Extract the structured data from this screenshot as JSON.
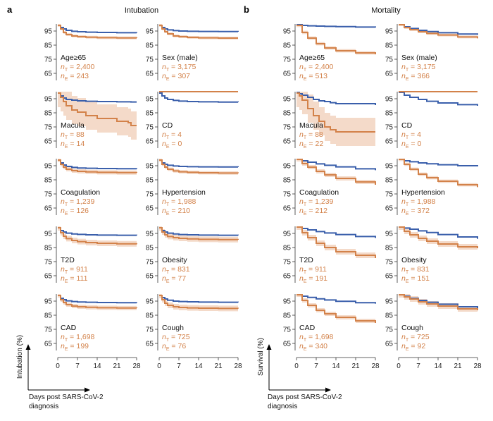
{
  "colors": {
    "treated": "#3a5fab",
    "event": "#d3824a",
    "band": "#f2d3bf",
    "axis": "#333333"
  },
  "figure": {
    "panel_a": {
      "letter": "a",
      "title": "Intubation",
      "ylabel": "Intubation (%)"
    },
    "panel_b": {
      "letter": "b",
      "title": "Mortality",
      "ylabel": "Survival (%)"
    },
    "xlabel_line1": "Days post SARS-CoV-2",
    "xlabel_line2": "diagnosis",
    "n_prefix_t": "n",
    "n_sub_t": "T",
    "n_prefix_e": "n",
    "n_sub_e": "E"
  },
  "chart_data": [
    {
      "panel": "a",
      "type": "line",
      "title": "Intubation",
      "ylabel": "Intubation (%)",
      "xlabel": "Days post SARS-CoV-2 diagnosis",
      "x_ticks": [
        0,
        7,
        14,
        21,
        28
      ],
      "y_ticks": [
        95,
        85,
        75,
        65
      ],
      "xlim": [
        0,
        28
      ],
      "ylim": [
        60,
        100
      ],
      "subplots": [
        {
          "condition": "Age≥65",
          "n_t": "2,400",
          "n_e": "243",
          "x": [
            0,
            1,
            2,
            3,
            5,
            7,
            10,
            14,
            21,
            28
          ],
          "series": [
            {
              "values": [
                99,
                97.5,
                96.5,
                95.5,
                94.8,
                94.5,
                94.2,
                94,
                93.8,
                93.7
              ]
            },
            {
              "values": [
                99,
                96.5,
                94,
                92.5,
                91.5,
                91,
                90.6,
                90.3,
                90.1,
                90
              ],
              "band": 1
            }
          ]
        },
        {
          "condition": "Sex (male)",
          "n_t": "3,175",
          "n_e": "307",
          "x": [
            0,
            1,
            2,
            3,
            5,
            7,
            10,
            14,
            21,
            28
          ],
          "series": [
            {
              "values": [
                99,
                97.5,
                96.5,
                95.8,
                95.3,
                95,
                94.8,
                94.7,
                94.6,
                94.5
              ]
            },
            {
              "values": [
                99,
                96.5,
                94.5,
                93,
                91.5,
                91,
                90.5,
                90.2,
                90,
                90
              ],
              "band": 1
            }
          ]
        },
        {
          "condition": "Macula",
          "n_t": "88",
          "n_e": "14",
          "x": [
            0,
            1,
            2,
            3,
            5,
            7,
            10,
            14,
            21,
            25,
            26,
            28
          ],
          "series": [
            {
              "values": [
                99,
                97,
                95.5,
                94.5,
                94,
                93.5,
                93.2,
                93,
                92.8,
                92.8,
                92.7,
                92.7
              ]
            },
            {
              "values": [
                99,
                96,
                93,
                90,
                87,
                85.5,
                83,
                81,
                79,
                78,
                76,
                76
              ],
              "band": 10
            }
          ]
        },
        {
          "condition": "CD",
          "n_t": "4",
          "n_e": "0",
          "x": [
            0,
            1,
            2,
            3,
            5,
            7,
            10,
            14,
            21,
            28
          ],
          "series": [
            {
              "values": [
                99,
                97,
                95.5,
                94.5,
                93.8,
                93.3,
                93,
                92.8,
                92.6,
                92.5
              ]
            },
            {
              "values": [
                100,
                100,
                100,
                100,
                100,
                100,
                100,
                100,
                100,
                100
              ]
            }
          ]
        },
        {
          "condition": "Coagulation",
          "n_t": "1,239",
          "n_e": "126",
          "x": [
            0,
            1,
            2,
            3,
            5,
            7,
            10,
            14,
            21,
            28
          ],
          "series": [
            {
              "values": [
                99,
                97,
                95.5,
                94.5,
                93.8,
                93.4,
                93.2,
                93,
                92.9,
                92.8
              ]
            },
            {
              "values": [
                99,
                96,
                94,
                92.5,
                91.5,
                91,
                90.6,
                90.3,
                90.1,
                90
              ],
              "band": 1.5
            }
          ]
        },
        {
          "condition": "Hypertension",
          "n_t": "1,988",
          "n_e": "210",
          "x": [
            0,
            1,
            2,
            3,
            5,
            7,
            10,
            14,
            21,
            28
          ],
          "series": [
            {
              "values": [
                99,
                97,
                96,
                95.3,
                94.8,
                94.5,
                94.3,
                94.2,
                94.1,
                94
              ]
            },
            {
              "values": [
                99,
                96,
                94,
                92.5,
                91.3,
                90.7,
                90.3,
                90,
                89.8,
                89.7
              ],
              "band": 1.2
            }
          ]
        },
        {
          "condition": "T2D",
          "n_t": "911",
          "n_e": "111",
          "x": [
            0,
            1,
            2,
            3,
            5,
            7,
            10,
            14,
            21,
            28
          ],
          "series": [
            {
              "values": [
                99,
                97,
                96,
                95.2,
                94.6,
                94.3,
                94,
                93.8,
                93.7,
                93.6
              ]
            },
            {
              "values": [
                99,
                95.5,
                93,
                91.3,
                90,
                89.2,
                88.5,
                88,
                87.6,
                87.3
              ],
              "band": 2
            }
          ]
        },
        {
          "condition": "Obesity",
          "n_t": "831",
          "n_e": "77",
          "x": [
            0,
            1,
            2,
            3,
            5,
            7,
            10,
            14,
            21,
            28
          ],
          "series": [
            {
              "values": [
                99,
                97,
                96,
                95.2,
                94.6,
                94.2,
                94,
                93.8,
                93.7,
                93.6
              ]
            },
            {
              "values": [
                99,
                96,
                94,
                92.8,
                92,
                91.5,
                91.1,
                90.8,
                90.6,
                90.5
              ],
              "band": 2
            }
          ]
        },
        {
          "condition": "CAD",
          "n_t": "1,698",
          "n_e": "199",
          "x": [
            0,
            1,
            2,
            3,
            5,
            7,
            10,
            14,
            21,
            28
          ],
          "series": [
            {
              "values": [
                99,
                97,
                96,
                95.2,
                94.7,
                94.4,
                94.2,
                94,
                93.9,
                93.8
              ]
            },
            {
              "values": [
                99,
                96,
                94,
                92.5,
                91.5,
                91,
                90.6,
                90.3,
                90.1,
                90
              ],
              "band": 1.5
            }
          ]
        },
        {
          "condition": "Cough",
          "n_t": "725",
          "n_e": "76",
          "x": [
            0,
            1,
            2,
            3,
            5,
            7,
            10,
            14,
            21,
            28
          ],
          "series": [
            {
              "values": [
                99,
                97.5,
                96.5,
                95.6,
                95,
                94.7,
                94.5,
                94.3,
                94.2,
                94.1
              ]
            },
            {
              "values": [
                99,
                96,
                93.5,
                92,
                91,
                90.5,
                90.2,
                90,
                89.8,
                89.7
              ],
              "band": 2
            }
          ]
        }
      ]
    },
    {
      "panel": "b",
      "type": "line",
      "title": "Mortality",
      "ylabel": "Survival (%)",
      "xlabel": "Days post SARS-CoV-2 diagnosis",
      "x_ticks": [
        0,
        7,
        14,
        21,
        28
      ],
      "y_ticks": [
        95,
        85,
        75,
        65
      ],
      "xlim": [
        0,
        28
      ],
      "ylim": [
        60,
        100
      ],
      "subplots": [
        {
          "condition": "Age≥65",
          "n_t": "2,400",
          "n_e": "513",
          "x": [
            0,
            2,
            4,
            7,
            10,
            14,
            21,
            28
          ],
          "series": [
            {
              "values": [
                99.5,
                99,
                98.7,
                98.5,
                98.3,
                98.1,
                97.8,
                97.5
              ]
            },
            {
              "values": [
                99,
                94,
                90,
                86,
                83,
                81,
                79.5,
                78.5
              ],
              "band": 1.2
            }
          ]
        },
        {
          "condition": "Sex (male)",
          "n_t": "3,175",
          "n_e": "366",
          "x": [
            0,
            2,
            4,
            7,
            10,
            14,
            21,
            28
          ],
          "series": [
            {
              "values": [
                99.5,
                98,
                96.8,
                95.5,
                94.6,
                93.8,
                92.9,
                92.3
              ]
            },
            {
              "values": [
                99.5,
                97.5,
                96,
                94.5,
                93.3,
                92.2,
                90.8,
                89.8
              ],
              "band": 1
            }
          ]
        },
        {
          "condition": "Macula",
          "n_t": "88",
          "n_e": "22",
          "x": [
            0,
            1,
            2,
            4,
            6,
            8,
            10,
            12,
            14,
            28
          ],
          "series": [
            {
              "values": [
                99.5,
                98.5,
                97.5,
                96,
                94.5,
                93.5,
                93,
                92.2,
                91.5,
                90.5
              ]
            },
            {
              "values": [
                99,
                97,
                94,
                88,
                83,
                79,
                75,
                73,
                71.5,
                71.5
              ],
              "band": 10
            }
          ]
        },
        {
          "condition": "CD",
          "n_t": "4",
          "n_e": "0",
          "x": [
            0,
            2,
            4,
            7,
            10,
            14,
            21,
            28
          ],
          "series": [
            {
              "values": [
                99.5,
                97.5,
                96,
                94.5,
                93.2,
                92,
                90.8,
                90
              ]
            },
            {
              "values": [
                100,
                100,
                100,
                100,
                100,
                100,
                100,
                100
              ]
            }
          ]
        },
        {
          "condition": "Coagulation",
          "n_t": "1,239",
          "n_e": "212",
          "x": [
            0,
            2,
            4,
            7,
            10,
            14,
            21,
            28
          ],
          "series": [
            {
              "values": [
                99.5,
                98.5,
                97.5,
                96.3,
                95.3,
                94.2,
                92.8,
                91.8
              ]
            },
            {
              "values": [
                99.5,
                96.5,
                94,
                91,
                88.5,
                86,
                83.5,
                81.5
              ],
              "band": 1.5
            }
          ]
        },
        {
          "condition": "Hypertension",
          "n_t": "1,988",
          "n_e": "372",
          "x": [
            0,
            2,
            4,
            7,
            10,
            14,
            21,
            28
          ],
          "series": [
            {
              "values": [
                99.5,
                98.5,
                97.8,
                97,
                96.4,
                95.7,
                95,
                94.5
              ]
            },
            {
              "values": [
                99.5,
                96,
                92.5,
                89,
                86.5,
                84,
                81.5,
                79.8
              ],
              "band": 1.2
            }
          ]
        },
        {
          "condition": "T2D",
          "n_t": "911",
          "n_e": "191",
          "x": [
            0,
            2,
            4,
            7,
            10,
            14,
            21,
            28
          ],
          "series": [
            {
              "values": [
                99.5,
                98.5,
                97.5,
                96.3,
                95.3,
                94.2,
                92.8,
                91.8
              ]
            },
            {
              "values": [
                99.5,
                95.5,
                92,
                88,
                85,
                82,
                79.5,
                77.5
              ],
              "band": 2
            }
          ]
        },
        {
          "condition": "Obesity",
          "n_t": "831",
          "n_e": "151",
          "x": [
            0,
            2,
            4,
            7,
            10,
            14,
            21,
            28
          ],
          "series": [
            {
              "values": [
                99.5,
                98.8,
                98,
                96.8,
                95.6,
                94.2,
                92.5,
                91.2
              ]
            },
            {
              "values": [
                99.5,
                96.5,
                94,
                91.5,
                89.5,
                87.5,
                85.5,
                84.5
              ],
              "band": 2
            }
          ]
        },
        {
          "condition": "CAD",
          "n_t": "1,698",
          "n_e": "340",
          "x": [
            0,
            2,
            4,
            7,
            10,
            14,
            21,
            28
          ],
          "series": [
            {
              "values": [
                99.5,
                98.5,
                97.6,
                96.6,
                95.8,
                94.9,
                93.9,
                93.2
              ]
            },
            {
              "values": [
                99.5,
                95.5,
                92,
                88.5,
                86,
                83.5,
                81,
                79.5
              ],
              "band": 1.5
            }
          ]
        },
        {
          "condition": "Cough",
          "n_t": "725",
          "n_e": "92",
          "x": [
            0,
            2,
            4,
            7,
            10,
            14,
            21,
            28
          ],
          "series": [
            {
              "values": [
                99.5,
                98.5,
                97,
                95.5,
                94.2,
                92.8,
                91,
                90
              ]
            },
            {
              "values": [
                99.5,
                98,
                96.5,
                94.5,
                93,
                91.5,
                89.5,
                88.5
              ],
              "band": 2
            }
          ]
        }
      ]
    }
  ]
}
